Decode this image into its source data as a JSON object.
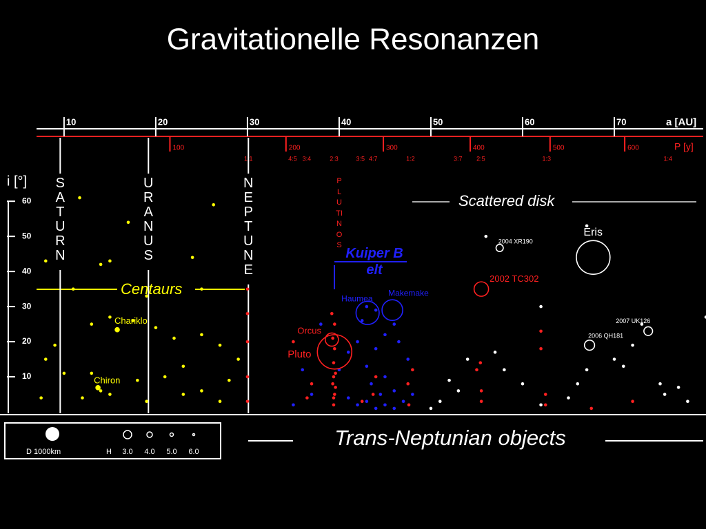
{
  "chart_data": {
    "type": "scatter",
    "title": "Gravitationelle Resonanzen",
    "x_label": "a [AU]",
    "y_label": "i [°]",
    "period_label": "P [y]",
    "xlim": [
      7,
      80
    ],
    "ylim": [
      0,
      62
    ],
    "xticks": [
      10,
      20,
      30,
      40,
      50,
      60,
      70
    ],
    "yticks": [
      10,
      20,
      30,
      40,
      50,
      60
    ],
    "period_ticks": [
      100,
      200,
      300,
      400,
      500,
      600
    ],
    "resonances": [
      "1:1",
      "4:5",
      "3:4",
      "2:3",
      "3:5",
      "4:7",
      "1:2",
      "3:7",
      "2:5",
      "1:3",
      "1:4"
    ],
    "planets": [
      {
        "name": "SATURN",
        "a": 9.58
      },
      {
        "name": "URANUS",
        "a": 19.2
      },
      {
        "name": "NEPTUNE",
        "a": 30.1
      }
    ],
    "series": [
      {
        "name": "Centaurs",
        "color": "#ffff00",
        "x": [
          11.7,
          26.3,
          17,
          14,
          11,
          8,
          15,
          24,
          25,
          19,
          13,
          15,
          17.5,
          20,
          22,
          25,
          27,
          9,
          8,
          10,
          13,
          14,
          15,
          18,
          19,
          21,
          23,
          25,
          27,
          28,
          29,
          23,
          7.5,
          12
        ],
        "values": [
          61,
          59,
          54,
          42,
          35,
          43,
          43,
          44,
          35,
          33,
          25,
          27,
          26,
          24,
          21,
          22,
          19,
          19,
          15,
          11,
          11,
          6,
          5,
          9,
          3,
          10,
          13,
          6,
          3,
          9,
          15,
          5,
          4,
          4
        ]
      },
      {
        "name": "PLUTINOS",
        "color": "#ff2020",
        "x": [
          39.4,
          39.5,
          39.3,
          39.6,
          39.4,
          39.5,
          39.3,
          39.5,
          39.4,
          39.6,
          39.4,
          39.2,
          30,
          30,
          30,
          30,
          30,
          36.5,
          37,
          35,
          42.5,
          43.7,
          44,
          47.5,
          47.6,
          48,
          55.5,
          55.5,
          55,
          55.4,
          62,
          62,
          62.5,
          62.5,
          72,
          67.5
        ],
        "values": [
          2,
          5,
          8,
          11,
          14,
          18,
          21,
          25,
          4,
          7,
          10,
          28,
          28,
          20,
          10,
          3,
          35,
          4,
          8,
          20,
          3,
          5,
          10,
          8,
          2,
          12,
          6,
          3,
          12,
          14,
          18,
          23,
          5,
          2,
          3,
          1
        ]
      },
      {
        "name": "Kuiper Belt",
        "color": "#2020ff",
        "x": [
          42,
          43,
          44,
          45,
          46,
          44.5,
          43.5,
          45,
          46,
          47,
          43,
          44,
          45,
          46,
          42.5,
          41,
          40,
          41,
          47.5,
          46.5,
          44,
          43,
          48,
          42,
          38,
          36,
          37,
          35
        ],
        "values": [
          2,
          3,
          1,
          2,
          1,
          5,
          8,
          10,
          6,
          3,
          13,
          18,
          22,
          25,
          26,
          17,
          12,
          4,
          15,
          20,
          29,
          30,
          5,
          20,
          25,
          12,
          5,
          2
        ]
      },
      {
        "name": "Scattered disk",
        "color": "#ffffff",
        "x": [
          50,
          53,
          54,
          57,
          60,
          62,
          65,
          67,
          70,
          72,
          75,
          75.5,
          78,
          77,
          73,
          80,
          62,
          56,
          67,
          58,
          51,
          52,
          66,
          71
        ],
        "values": [
          1,
          6,
          15,
          17,
          8,
          2,
          4,
          12,
          15,
          19,
          8,
          5,
          3,
          7,
          25,
          27,
          30,
          50,
          53,
          12,
          3,
          9,
          8,
          13
        ]
      }
    ],
    "objects": [
      {
        "name": "Pluto",
        "a": 39.5,
        "i": 17.1,
        "D": 2377,
        "color": "#ff2020"
      },
      {
        "name": "Orcus",
        "a": 39.2,
        "i": 20.6,
        "D": 910,
        "color": "#ff2020"
      },
      {
        "name": "Haumea",
        "a": 43.1,
        "i": 28.2,
        "D": 1600,
        "color": "#2020ff"
      },
      {
        "name": "Makemake",
        "a": 45.8,
        "i": 29,
        "D": 1430,
        "color": "#2020ff"
      },
      {
        "name": "2002 TC302",
        "a": 55.5,
        "i": 35,
        "D": 1000,
        "color": "#ff2020"
      },
      {
        "name": "Eris",
        "a": 67.7,
        "i": 44,
        "D": 2326,
        "color": "#ffffff"
      },
      {
        "name": "2004 XR190",
        "a": 57.5,
        "i": 46.7,
        "D": 500,
        "color": "#ffffff"
      },
      {
        "name": "2007 UK126",
        "a": 73.7,
        "i": 23,
        "D": 600,
        "color": "#ffffff"
      },
      {
        "name": "2006 QH181",
        "a": 67.3,
        "i": 19,
        "D": 700,
        "color": "#ffffff"
      },
      {
        "name": "Chariklo",
        "a": 15.8,
        "i": 23.4,
        "D": 250,
        "color": "#ffff00"
      },
      {
        "name": "Chiron",
        "a": 13.7,
        "i": 6.9,
        "D": 200,
        "color": "#ffff00"
      }
    ],
    "legend": {
      "size_label": "D 1000km",
      "mag_label": "H",
      "mags": [
        "3.0",
        "4.0",
        "5.0",
        "6.0"
      ]
    },
    "footer": "Trans-Neptunian objects"
  }
}
